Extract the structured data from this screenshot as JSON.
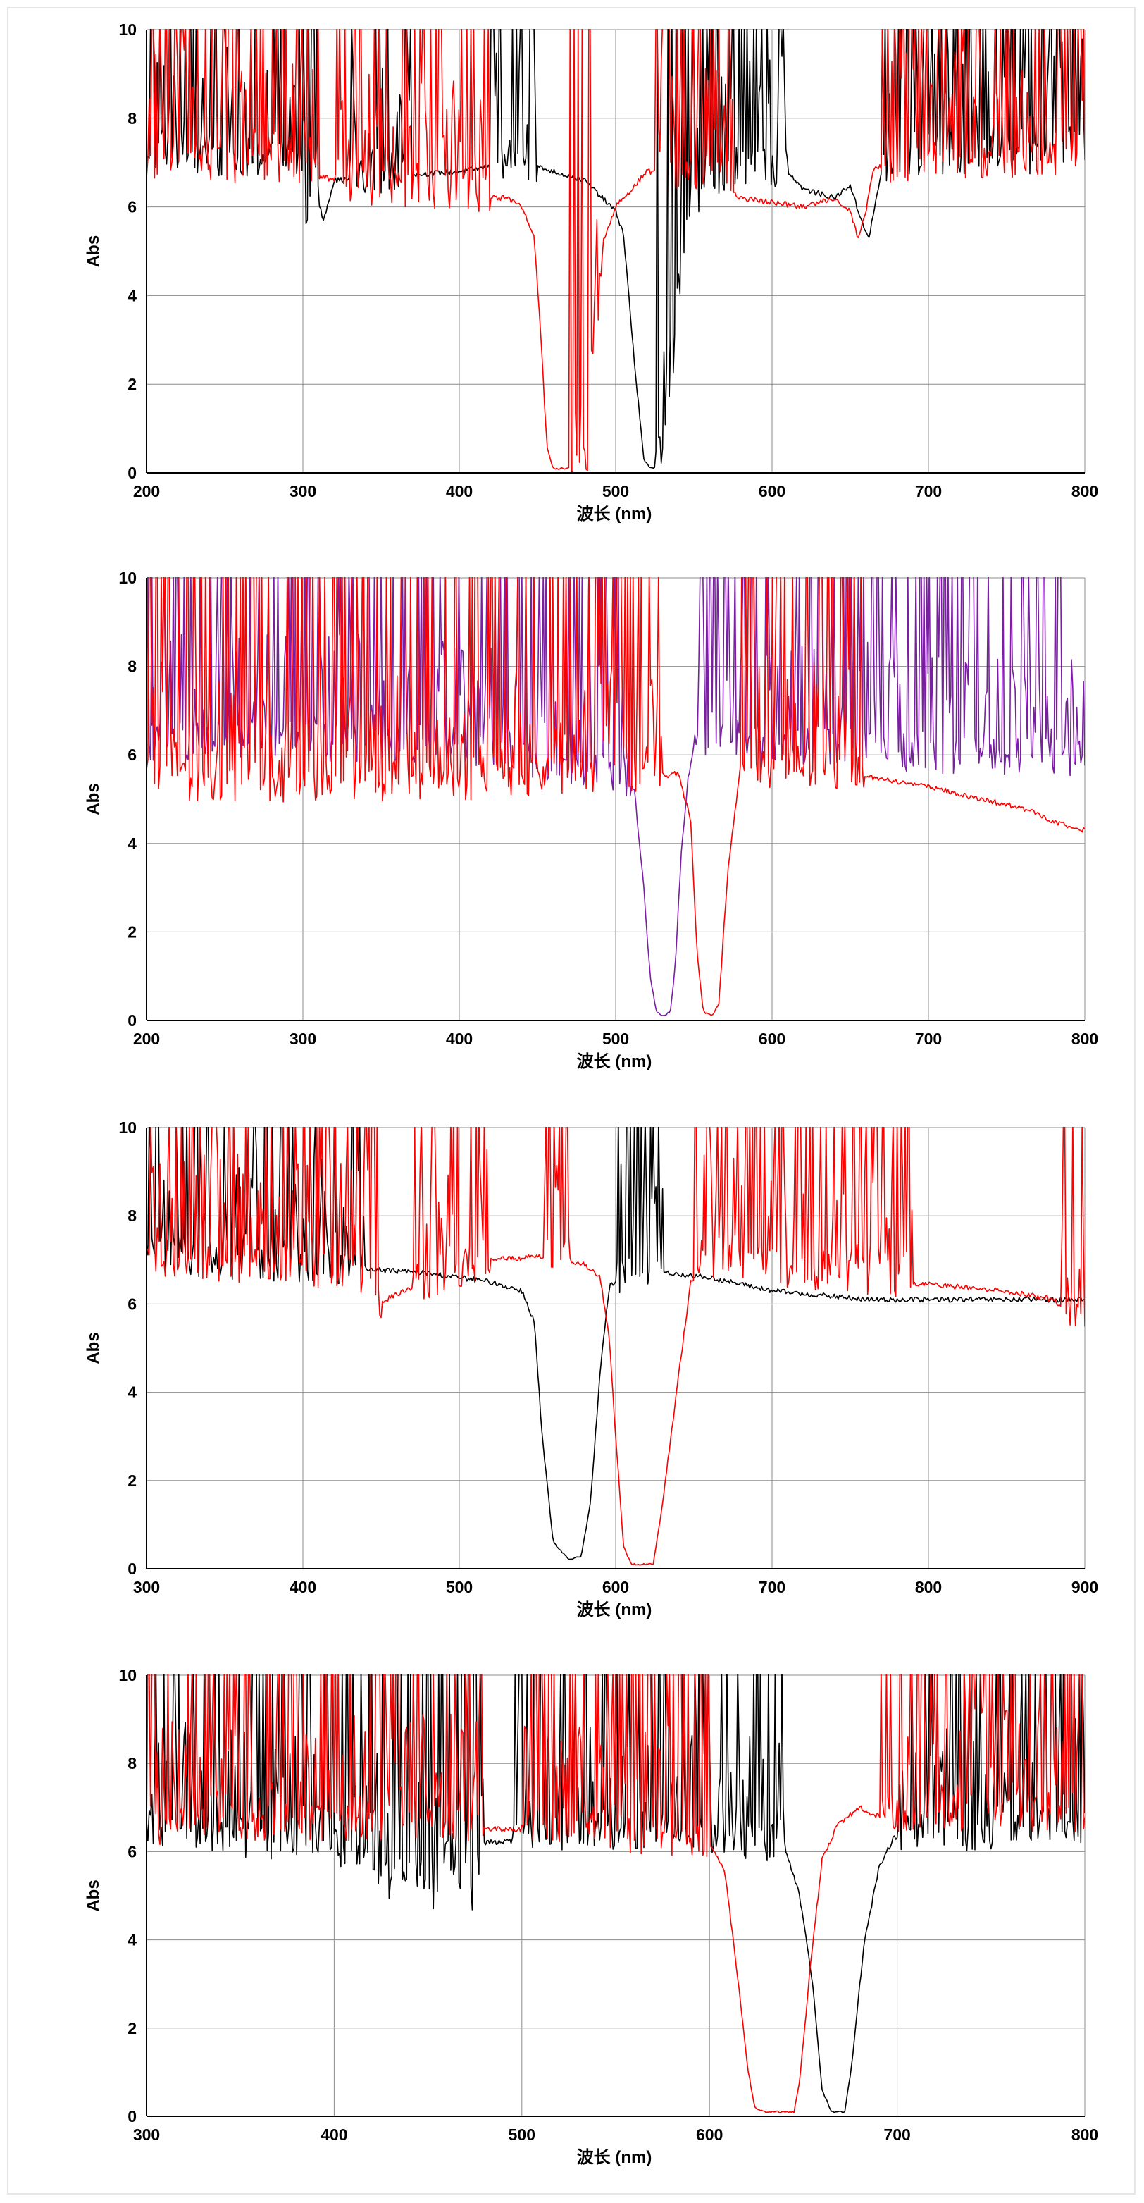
{
  "chart_data": [
    {
      "type": "line",
      "xlabel": "波长 (nm)",
      "ylabel": "Abs",
      "xlim": [
        200,
        800
      ],
      "ylim": [
        0,
        10
      ],
      "xticks": [
        200,
        300,
        400,
        500,
        600,
        700,
        800
      ],
      "yticks": [
        0,
        2,
        4,
        6,
        8,
        10
      ],
      "series": [
        {
          "name": "black",
          "color": "#000000",
          "baseline": [
            [
              200,
              7.2
            ],
            [
              300,
              6.9
            ],
            [
              302,
              5.7
            ],
            [
              308,
              6.4
            ],
            [
              313,
              5.7
            ],
            [
              320,
              6.6
            ],
            [
              400,
              6.8
            ],
            [
              440,
              7.0
            ],
            [
              480,
              6.6
            ],
            [
              500,
              5.9
            ],
            [
              505,
              5.4
            ],
            [
              512,
              2.5
            ],
            [
              518,
              0.3
            ],
            [
              522,
              0.1
            ],
            [
              530,
              0.2
            ],
            [
              535,
              1.5
            ],
            [
              540,
              4.0
            ],
            [
              548,
              6.0
            ],
            [
              560,
              6.5
            ],
            [
              600,
              6.8
            ],
            [
              610,
              6.8
            ],
            [
              620,
              6.4
            ],
            [
              640,
              6.2
            ],
            [
              650,
              6.5
            ],
            [
              655,
              5.9
            ],
            [
              662,
              5.3
            ],
            [
              670,
              6.8
            ],
            [
              800,
              7.2
            ]
          ],
          "noisy_ranges": [
            [
              200,
              310
            ],
            [
              330,
              370
            ],
            [
              420,
              450
            ],
            [
              525,
              610
            ],
            [
              670,
              800
            ]
          ]
        },
        {
          "name": "red",
          "color": "#ff0000",
          "baseline": [
            [
              200,
              7.0
            ],
            [
              300,
              6.8
            ],
            [
              340,
              6.4
            ],
            [
              430,
              6.2
            ],
            [
              440,
              6.0
            ],
            [
              448,
              5.3
            ],
            [
              452,
              3.2
            ],
            [
              456,
              0.6
            ],
            [
              460,
              0.1
            ],
            [
              480,
              0.1
            ],
            [
              484,
              0.6
            ],
            [
              488,
              3.2
            ],
            [
              492,
              5.2
            ],
            [
              500,
              6.0
            ],
            [
              520,
              6.8
            ],
            [
              560,
              6.6
            ],
            [
              580,
              6.2
            ],
            [
              600,
              6.1
            ],
            [
              620,
              6.0
            ],
            [
              640,
              6.2
            ],
            [
              650,
              5.9
            ],
            [
              655,
              5.3
            ],
            [
              660,
              5.9
            ],
            [
              665,
              6.9
            ],
            [
              800,
              7.0
            ]
          ],
          "noisy_ranges": [
            [
              200,
              310
            ],
            [
              320,
              420
            ],
            [
              470,
              490
            ],
            [
              525,
              575
            ],
            [
              670,
              800
            ]
          ]
        }
      ]
    },
    {
      "type": "line",
      "xlabel": "波长 (nm)",
      "ylabel": "Abs",
      "xlim": [
        200,
        800
      ],
      "ylim": [
        0,
        10
      ],
      "xticks": [
        200,
        300,
        400,
        500,
        600,
        700,
        800
      ],
      "yticks": [
        0,
        2,
        4,
        6,
        8,
        10
      ],
      "series": [
        {
          "name": "purple",
          "color": "#7a1fa2",
          "baseline": [
            [
              200,
              6.2
            ],
            [
              400,
              6.2
            ],
            [
              508,
              5.4
            ],
            [
              512,
              5.2
            ],
            [
              518,
              3.0
            ],
            [
              522,
              1.0
            ],
            [
              526,
              0.2
            ],
            [
              530,
              0.1
            ],
            [
              535,
              0.2
            ],
            [
              538,
              1.2
            ],
            [
              542,
              3.8
            ],
            [
              546,
              5.4
            ],
            [
              550,
              6.2
            ],
            [
              800,
              5.8
            ]
          ],
          "noisy_ranges": [
            [
              200,
              510
            ],
            [
              550,
              800
            ]
          ]
        },
        {
          "name": "red",
          "color": "#ff0000",
          "baseline": [
            [
              200,
              5.3
            ],
            [
              400,
              5.3
            ],
            [
              450,
              5.4
            ],
            [
              530,
              5.5
            ],
            [
              540,
              5.6
            ],
            [
              548,
              4.5
            ],
            [
              552,
              1.5
            ],
            [
              556,
              0.2
            ],
            [
              562,
              0.1
            ],
            [
              566,
              0.4
            ],
            [
              572,
              3.5
            ],
            [
              580,
              5.8
            ],
            [
              600,
              5.6
            ],
            [
              660,
              5.5
            ],
            [
              700,
              5.3
            ],
            [
              720,
              5.1
            ],
            [
              760,
              4.8
            ],
            [
              780,
              4.5
            ],
            [
              800,
              4.3
            ]
          ],
          "noisy_ranges": [
            [
              200,
              530
            ],
            [
              580,
              660
            ]
          ]
        }
      ]
    },
    {
      "type": "line",
      "xlabel": "波长 (nm)",
      "ylabel": "Abs",
      "xlim": [
        300,
        900
      ],
      "ylim": [
        0,
        10
      ],
      "xticks": [
        300,
        400,
        500,
        600,
        700,
        800,
        900
      ],
      "yticks": [
        0,
        2,
        4,
        6,
        8,
        10
      ],
      "series": [
        {
          "name": "black",
          "color": "#000000",
          "baseline": [
            [
              300,
              7.0
            ],
            [
              440,
              6.8
            ],
            [
              480,
              6.7
            ],
            [
              520,
              6.5
            ],
            [
              540,
              6.3
            ],
            [
              548,
              5.6
            ],
            [
              553,
              3.0
            ],
            [
              560,
              0.6
            ],
            [
              570,
              0.2
            ],
            [
              578,
              0.3
            ],
            [
              584,
              1.5
            ],
            [
              590,
              4.5
            ],
            [
              596,
              6.4
            ],
            [
              610,
              6.8
            ],
            [
              660,
              6.6
            ],
            [
              700,
              6.3
            ],
            [
              760,
              6.1
            ],
            [
              900,
              6.1
            ]
          ],
          "noisy_ranges": [
            [
              300,
              440
            ],
            [
              600,
              630
            ]
          ]
        },
        {
          "name": "red",
          "color": "#ff0000",
          "baseline": [
            [
              300,
              7.0
            ],
            [
              440,
              6.6
            ],
            [
              450,
              6.0
            ],
            [
              458,
              6.2
            ],
            [
              520,
              7.0
            ],
            [
              560,
              7.1
            ],
            [
              580,
              6.9
            ],
            [
              590,
              6.6
            ],
            [
              596,
              5.2
            ],
            [
              600,
              3.0
            ],
            [
              605,
              0.5
            ],
            [
              610,
              0.1
            ],
            [
              624,
              0.1
            ],
            [
              630,
              1.5
            ],
            [
              640,
              4.3
            ],
            [
              648,
              6.5
            ],
            [
              660,
              6.9
            ],
            [
              700,
              6.7
            ],
            [
              780,
              6.5
            ],
            [
              850,
              6.3
            ],
            [
              880,
              6.1
            ],
            [
              900,
              5.5
            ]
          ],
          "noisy_ranges": [
            [
              300,
              450
            ],
            [
              470,
              520
            ],
            [
              554,
              570
            ],
            [
              650,
              790
            ],
            [
              885,
              900
            ]
          ]
        }
      ]
    },
    {
      "type": "line",
      "xlabel": "波长 (nm)",
      "ylabel": "Abs",
      "xlim": [
        300,
        800
      ],
      "ylim": [
        0,
        10
      ],
      "xticks": [
        300,
        400,
        500,
        600,
        700,
        800
      ],
      "yticks": [
        0,
        2,
        4,
        6,
        8,
        10
      ],
      "series": [
        {
          "name": "black",
          "color": "#000000",
          "baseline": [
            [
              300,
              6.5
            ],
            [
              400,
              6.0
            ],
            [
              420,
              5.8
            ],
            [
              430,
              5.2
            ],
            [
              440,
              5.8
            ],
            [
              450,
              4.7
            ],
            [
              460,
              5.9
            ],
            [
              470,
              4.2
            ],
            [
              480,
              6.2
            ],
            [
              560,
              6.4
            ],
            [
              640,
              6.1
            ],
            [
              648,
              5.0
            ],
            [
              655,
              3.0
            ],
            [
              660,
              0.6
            ],
            [
              665,
              0.1
            ],
            [
              672,
              0.1
            ],
            [
              676,
              1.2
            ],
            [
              682,
              3.8
            ],
            [
              690,
              5.6
            ],
            [
              698,
              6.3
            ],
            [
              800,
              6.5
            ]
          ],
          "noisy_ranges": [
            [
              300,
              480
            ],
            [
              495,
              640
            ],
            [
              700,
              800
            ]
          ]
        },
        {
          "name": "red",
          "color": "#ff0000",
          "baseline": [
            [
              300,
              6.5
            ],
            [
              400,
              6.6
            ],
            [
              500,
              6.5
            ],
            [
              600,
              6.2
            ],
            [
              608,
              5.6
            ],
            [
              614,
              3.5
            ],
            [
              620,
              1.2
            ],
            [
              624,
              0.2
            ],
            [
              630,
              0.1
            ],
            [
              645,
              0.1
            ],
            [
              648,
              0.8
            ],
            [
              654,
              3.5
            ],
            [
              660,
              5.8
            ],
            [
              668,
              6.6
            ],
            [
              680,
              7.0
            ],
            [
              690,
              6.8
            ],
            [
              800,
              6.8
            ]
          ],
          "noisy_ranges": [
            [
              300,
              480
            ],
            [
              500,
              600
            ],
            [
              690,
              800
            ]
          ]
        }
      ]
    }
  ]
}
